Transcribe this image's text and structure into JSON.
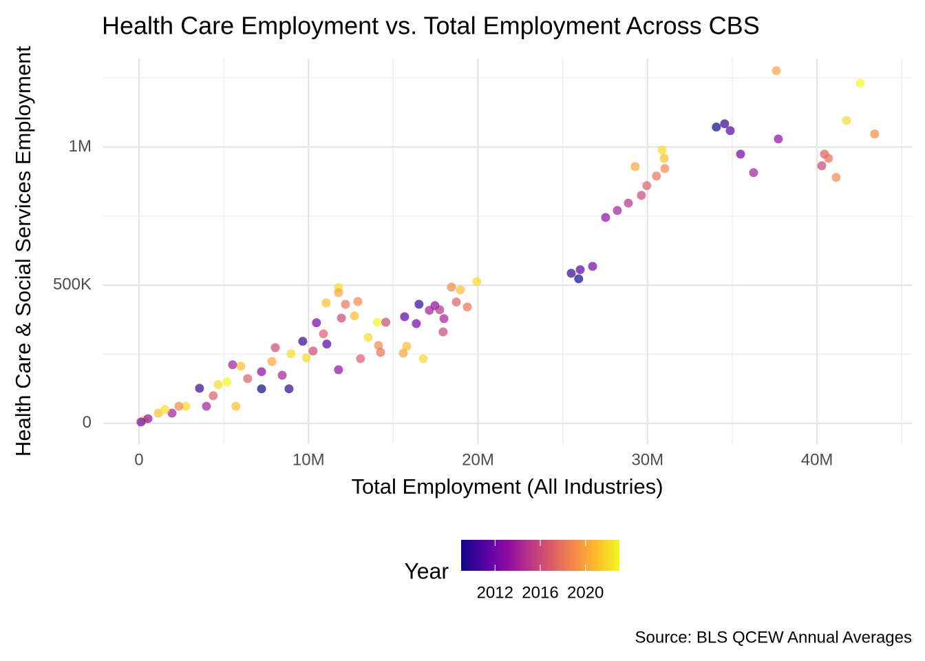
{
  "chart_data": {
    "type": "scatter",
    "title": "Health Care Employment vs. Total Employment Across CBS",
    "x_label": "Total Employment (All Industries)",
    "y_label": "Health Care & Social Services Employment",
    "caption": "Source: BLS QCEW Annual Averages",
    "xlim": [
      -2110000,
      45600000
    ],
    "ylim": [
      -75000,
      1320000
    ],
    "xticks": [
      0,
      {
        "value": 10000000,
        "label": "10M"
      },
      {
        "value": 20000000,
        "label": "20M"
      },
      {
        "value": 30000000,
        "label": "30M"
      },
      {
        "value": 40000000,
        "label": "40M"
      }
    ],
    "yticks": [
      0,
      {
        "value": 500000,
        "label": "500K"
      },
      {
        "value": 1000000,
        "label": "1M"
      }
    ],
    "grid": true,
    "legend_position": "bottom",
    "colorscale": {
      "name": "Year",
      "limits": [
        2009,
        2023
      ],
      "ticks": [
        2012,
        2016,
        2020
      ],
      "colors": [
        "#0d0887",
        "#5302a3",
        "#8b0aa5",
        "#b83289",
        "#db5c68",
        "#f48849",
        "#febd2a",
        "#f0f921"
      ]
    },
    "series": [
      {
        "x": [
          37600000,
          42550000,
          41740000,
          43400000,
          34550000,
          34060000,
          34880000,
          37720000,
          35490000,
          36260000,
          40440000,
          40680000,
          40280000,
          41130000,
          30860000,
          30980000,
          29270000,
          31020000,
          30530000,
          29960000,
          29640000,
          28870000,
          28220000,
          27530000,
          26760000,
          26030000,
          25500000,
          25940000,
          19930000,
          18430000,
          18960000,
          18720000,
          19370000,
          16520000,
          17460000,
          17130000,
          17740000,
          15670000,
          16360000,
          17990000,
          17940000,
          16770000,
          15790000,
          15590000,
          11770000,
          11770000,
          11040000,
          12910000,
          12180000,
          12710000,
          11940000,
          14070000,
          14560000,
          10470000,
          9660000,
          13520000,
          14130000,
          14250000,
          11770000,
          8850000,
          7230000,
          13070000,
          10880000,
          8040000,
          8970000,
          6010000,
          5520000,
          4670000,
          5720000,
          3570000,
          3980000,
          2760000,
          1950000,
          1140000,
          320000,
          120000,
          530000,
          1540000,
          2350000,
          7230000,
          6410000,
          4380000,
          5200000,
          7840000,
          9870000,
          8450000,
          10270000,
          11080000
        ],
        "values": [
          1276000,
          1231000,
          1096000,
          1047000,
          1084000,
          1072000,
          1059000,
          1029000,
          974000,
          907000,
          974000,
          959000,
          932000,
          890000,
          989000,
          959000,
          929000,
          922000,
          895000,
          860000,
          825000,
          797000,
          770000,
          745000,
          568000,
          556000,
          543000,
          523000,
          513000,
          493000,
          483000,
          439000,
          421000,
          431000,
          426000,
          409000,
          411000,
          386000,
          361000,
          379000,
          331000,
          234000,
          279000,
          254000,
          491000,
          473000,
          436000,
          441000,
          431000,
          389000,
          381000,
          366000,
          366000,
          364000,
          297000,
          311000,
          282000,
          257000,
          194000,
          125000,
          125000,
          234000,
          324000,
          274000,
          252000,
          207000,
          212000,
          140000,
          62000,
          127000,
          62000,
          62000,
          37000,
          37000,
          12000,
          5000,
          17000,
          50000,
          62000,
          187000,
          162000,
          100000,
          150000,
          224000,
          237000,
          174000,
          262000,
          287000
        ],
        "years": [
          2020,
          2023,
          2022,
          2019,
          2010,
          2009,
          2011,
          2013,
          2012,
          2014,
          2017,
          2018,
          2016,
          2019,
          2022,
          2021,
          2020,
          2019,
          2018,
          2017,
          2016,
          2015,
          2014,
          2013,
          2012,
          2011,
          2010,
          2009,
          2022,
          2019,
          2021,
          2017,
          2018,
          2010,
          2013,
          2014,
          2015,
          2011,
          2012,
          2014,
          2016,
          2022,
          2021,
          2020,
          2022,
          2020,
          2021,
          2019,
          2018,
          2021,
          2016,
          2023,
          2016,
          2012,
          2010,
          2022,
          2019,
          2018,
          2013,
          2010,
          2009,
          2017,
          2017,
          2016,
          2022,
          2021,
          2014,
          2022,
          2021,
          2010,
          2014,
          2022,
          2014,
          2021,
          2022,
          2012,
          2013,
          2022,
          2019,
          2013,
          2017,
          2017,
          2023,
          2020,
          2022,
          2014,
          2016,
          2011
        ]
      }
    ]
  }
}
